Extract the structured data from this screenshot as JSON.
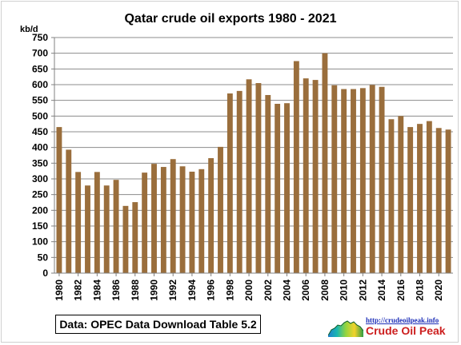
{
  "chart_data": {
    "type": "bar",
    "title": "Qatar crude oil exports 1980 - 2021",
    "ylabel": "kb/d",
    "xlabel": "",
    "ylim": [
      0,
      750
    ],
    "yticks": [
      0,
      50,
      100,
      150,
      200,
      250,
      300,
      350,
      400,
      450,
      500,
      550,
      600,
      650,
      700,
      750
    ],
    "x_tick_labels": [
      "1980",
      "1982",
      "1984",
      "1986",
      "1988",
      "1990",
      "1992",
      "1994",
      "1996",
      "1998",
      "2000",
      "2002",
      "2004",
      "2006",
      "2008",
      "2010",
      "2012",
      "2014",
      "2016",
      "2018",
      "2020"
    ],
    "categories": [
      "1980",
      "1981",
      "1982",
      "1983",
      "1984",
      "1985",
      "1986",
      "1987",
      "1988",
      "1989",
      "1990",
      "1991",
      "1992",
      "1993",
      "1994",
      "1995",
      "1996",
      "1997",
      "1998",
      "1999",
      "2000",
      "2001",
      "2002",
      "2003",
      "2004",
      "2005",
      "2006",
      "2007",
      "2008",
      "2009",
      "2010",
      "2011",
      "2012",
      "2013",
      "2014",
      "2015",
      "2016",
      "2017",
      "2018",
      "2019",
      "2020",
      "2021"
    ],
    "values": [
      465,
      393,
      322,
      279,
      322,
      279,
      297,
      214,
      226,
      320,
      348,
      338,
      363,
      340,
      323,
      331,
      366,
      402,
      572,
      580,
      617,
      605,
      567,
      539,
      541,
      675,
      620,
      615,
      700,
      598,
      586,
      586,
      589,
      599,
      593,
      490,
      500,
      465,
      475,
      484,
      462,
      457
    ],
    "grid": "horizontal",
    "legend": "none",
    "bar_color": "#9a6e3c"
  },
  "footer": {
    "source_text": "Data: OPEC Data Download Table 5.2",
    "logo_url": "http://crudeoilpeak.info",
    "logo_title": "Crude Oil Peak"
  },
  "colors": {
    "bar": "#9a6e3c",
    "grid": "#8c8c8c",
    "axis": "#808080",
    "logo_text": "#cc1f1f",
    "logo_url": "#1d2fb8"
  }
}
